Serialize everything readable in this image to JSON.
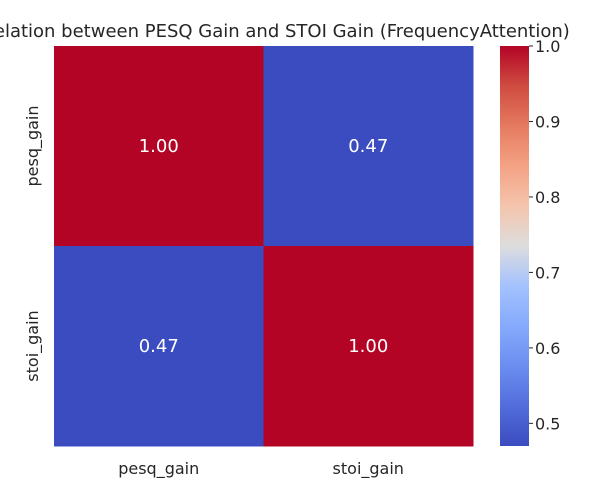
{
  "chart_data": {
    "type": "heatmap",
    "title": "Correlation between PESQ Gain and STOI Gain (FrequencyAttention)",
    "x_labels": [
      "pesq_gain",
      "stoi_gain"
    ],
    "y_labels": [
      "pesq_gain",
      "stoi_gain"
    ],
    "values": [
      [
        1.0,
        0.47
      ],
      [
        0.47,
        1.0
      ]
    ],
    "cell_labels": [
      [
        "1.00",
        "0.47"
      ],
      [
        "0.47",
        "1.00"
      ]
    ],
    "colormap": "coolwarm",
    "color_low": "#3b4cc0",
    "color_high": "#b40426",
    "colorbar_range": [
      0.47,
      1.0
    ],
    "colorbar_ticks": [
      "0.5",
      "0.6",
      "0.7",
      "0.8",
      "0.9",
      "1.0"
    ],
    "grid": false
  }
}
